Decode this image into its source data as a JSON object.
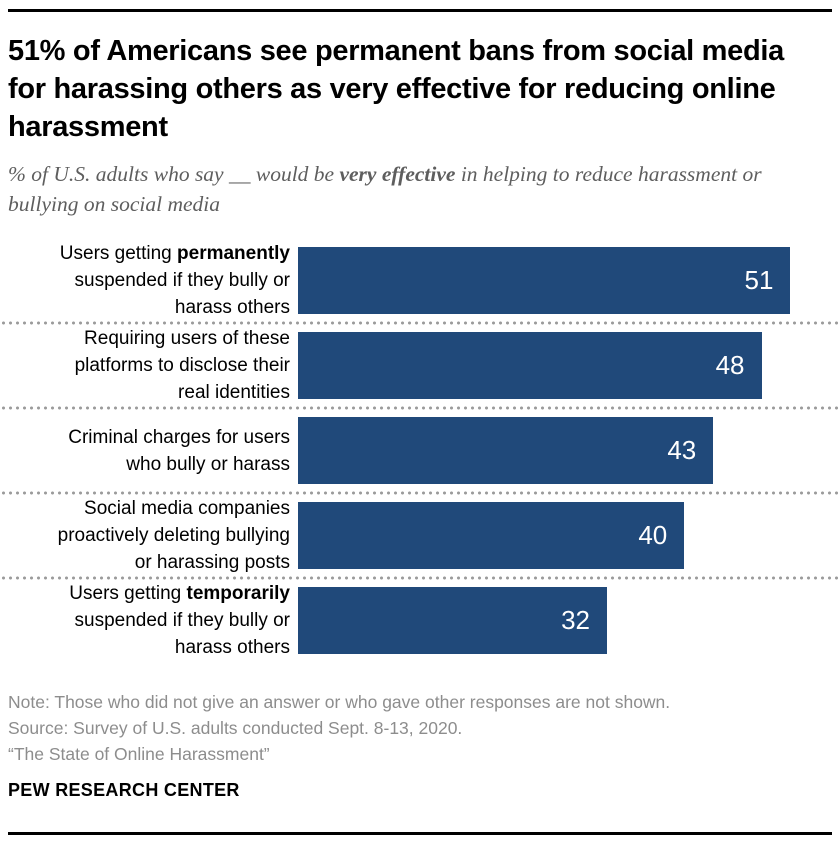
{
  "header": {
    "title": "51% of Americans see permanent bans from social media for harassing others as very effective for reducing online harassment",
    "subtitle_prefix": "% of U.S. adults who say __ would be ",
    "subtitle_bold": "very effective",
    "subtitle_suffix": " in helping to reduce harassment or bullying on social media"
  },
  "chart_data": {
    "type": "bar",
    "orientation": "horizontal",
    "title": "51% of Americans see permanent bans from social media for harassing others as very effective for reducing online harassment",
    "subtitle": "% of U.S. adults who say __ would be very effective in helping to reduce harassment or bullying on social media",
    "categories": [
      "Users getting permanently suspended if they bully or harass others",
      "Requiring users of these platforms to disclose their real identities",
      "Criminal charges for users who bully or harass",
      "Social media companies proactively deleting bullying or harassing posts",
      "Users getting temporarily suspended if they bully or harass others"
    ],
    "values": [
      51,
      48,
      43,
      40,
      32
    ],
    "xlim": [
      0,
      55.3
    ],
    "grid": false,
    "value_labels": "inside-end",
    "bar_color": "#20497a",
    "value_label_color": "#ffffff",
    "separator_style": "dotted",
    "rows": [
      {
        "value": 51,
        "label_lines": [
          [
            {
              "t": "Users getting ",
              "b": 0
            },
            {
              "t": "permanently",
              "b": 1
            }
          ],
          [
            {
              "t": "suspended if they bully or",
              "b": 0
            }
          ],
          [
            {
              "t": "harass others",
              "b": 0
            }
          ]
        ]
      },
      {
        "value": 48,
        "label_lines": [
          [
            {
              "t": "Requiring users of these",
              "b": 0
            }
          ],
          [
            {
              "t": "platforms to disclose their",
              "b": 0
            }
          ],
          [
            {
              "t": "real identities",
              "b": 0
            }
          ]
        ]
      },
      {
        "value": 43,
        "label_lines": [
          [
            {
              "t": "Criminal charges for users",
              "b": 0
            }
          ],
          [
            {
              "t": "who bully or harass",
              "b": 0
            }
          ]
        ]
      },
      {
        "value": 40,
        "label_lines": [
          [
            {
              "t": "Social media companies",
              "b": 0
            }
          ],
          [
            {
              "t": "proactively deleting bullying",
              "b": 0
            }
          ],
          [
            {
              "t": "or harassing posts",
              "b": 0
            }
          ]
        ]
      },
      {
        "value": 32,
        "label_lines": [
          [
            {
              "t": "Users getting ",
              "b": 0
            },
            {
              "t": "temporarily",
              "b": 1
            }
          ],
          [
            {
              "t": "suspended if they bully or",
              "b": 0
            }
          ],
          [
            {
              "t": "harass others",
              "b": 0
            }
          ]
        ]
      }
    ]
  },
  "footer": {
    "note": "Note: Those who did not give an answer or who gave other responses are not shown.",
    "source": "Source: Survey of U.S. adults conducted Sept. 8-13, 2020.",
    "report": "“The State of Online Harassment”",
    "brand": "PEW RESEARCH CENTER"
  },
  "colors": {
    "bar": "#20497a",
    "title_text": "#000000",
    "subtitle_text": "#5e5e5e",
    "note_text": "#8d8d8d",
    "separator_dots": "#9b9b9b",
    "rule": "#000000",
    "value_text": "#ffffff"
  }
}
